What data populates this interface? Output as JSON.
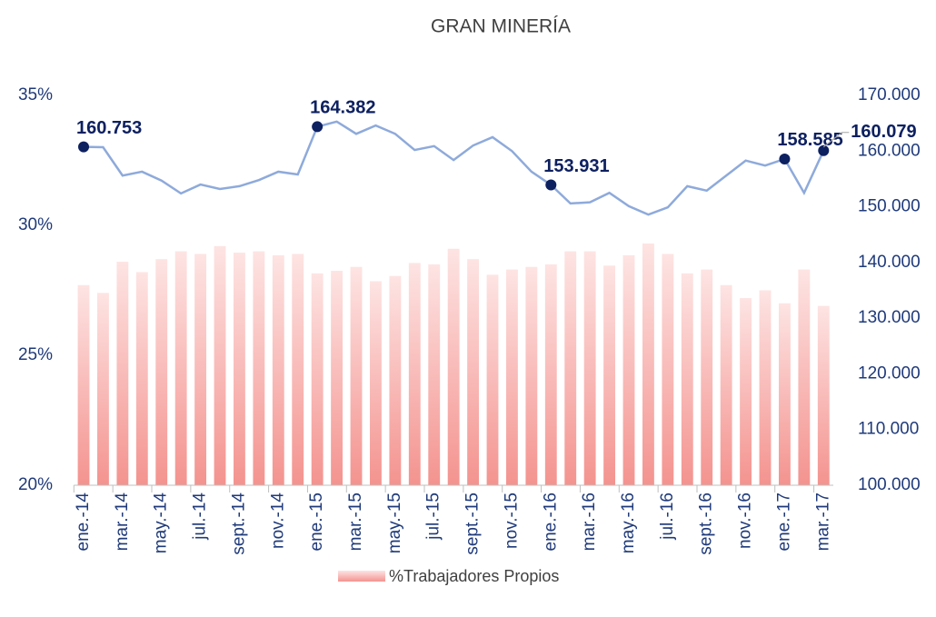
{
  "chart_data": {
    "type": "bar-line",
    "title": "GRAN MINERÍA",
    "categories": [
      "ene.-14",
      null,
      "mar.-14",
      null,
      "may.-14",
      null,
      "jul.-14",
      null,
      "sept.-14",
      null,
      "nov.-14",
      null,
      "ene.-15",
      null,
      "mar.-15",
      null,
      "may.-15",
      null,
      "jul.-15",
      null,
      "sept.-15",
      null,
      "nov.-15",
      null,
      "ene.-16",
      null,
      "mar.-16",
      null,
      "may.-16",
      null,
      "jul.-16",
      null,
      "sept.-16",
      null,
      "nov.-16",
      null,
      "ene.-17",
      null,
      "mar.-17"
    ],
    "series": [
      {
        "name": "%Trabajadores Propios",
        "type": "bar",
        "color": "#f4938f",
        "axis": "y",
        "values": [
          27.7,
          27.4,
          28.6,
          28.2,
          28.7,
          29.0,
          28.9,
          29.2,
          28.95,
          29.0,
          28.85,
          28.9,
          28.15,
          28.25,
          28.4,
          27.85,
          28.05,
          28.55,
          28.5,
          29.1,
          28.7,
          28.1,
          28.3,
          28.4,
          28.5,
          29.0,
          29.0,
          28.45,
          28.85,
          29.3,
          28.9,
          28.15,
          28.3,
          27.7,
          27.2,
          27.5,
          27.0,
          28.3,
          26.9
        ]
      },
      {
        "type": "line",
        "color": "#8eaadb",
        "marker_color": "#0d2060",
        "axis": "y2",
        "values": [
          160753,
          160700,
          155600,
          156300,
          154700,
          152400,
          154000,
          153200,
          153700,
          154800,
          156300,
          155800,
          164382,
          165300,
          163100,
          164600,
          163100,
          160200,
          160900,
          158400,
          161000,
          162500,
          160000,
          156300,
          153931,
          150600,
          150800,
          152500,
          150100,
          148600,
          149900,
          153700,
          152900,
          155600,
          158300,
          157400,
          158585,
          152500,
          160079
        ],
        "value_labels": [
          "160.753",
          null,
          null,
          null,
          null,
          null,
          null,
          null,
          null,
          null,
          null,
          null,
          "164.382",
          null,
          null,
          null,
          null,
          null,
          null,
          null,
          null,
          null,
          null,
          null,
          "153.931",
          null,
          null,
          null,
          null,
          null,
          null,
          null,
          null,
          null,
          null,
          null,
          "158.585",
          null,
          "160.079"
        ]
      }
    ],
    "ylim": [
      20,
      35
    ],
    "yticks": [
      {
        "value": 20,
        "label": "20%"
      },
      {
        "value": 25,
        "label": "25%"
      },
      {
        "value": 30,
        "label": "30%"
      },
      {
        "value": 35,
        "label": "35%"
      }
    ],
    "y2lim": [
      100000,
      170000
    ],
    "y2ticks": [
      {
        "value": 100000,
        "label": "100.000"
      },
      {
        "value": 110000,
        "label": "110.000"
      },
      {
        "value": 120000,
        "label": "120.000"
      },
      {
        "value": 130000,
        "label": "130.000"
      },
      {
        "value": 140000,
        "label": "140.000"
      },
      {
        "value": 150000,
        "label": "150.000"
      },
      {
        "value": 160000,
        "label": "160.000"
      },
      {
        "value": 170000,
        "label": "170.000"
      }
    ],
    "legend": "bottom"
  }
}
